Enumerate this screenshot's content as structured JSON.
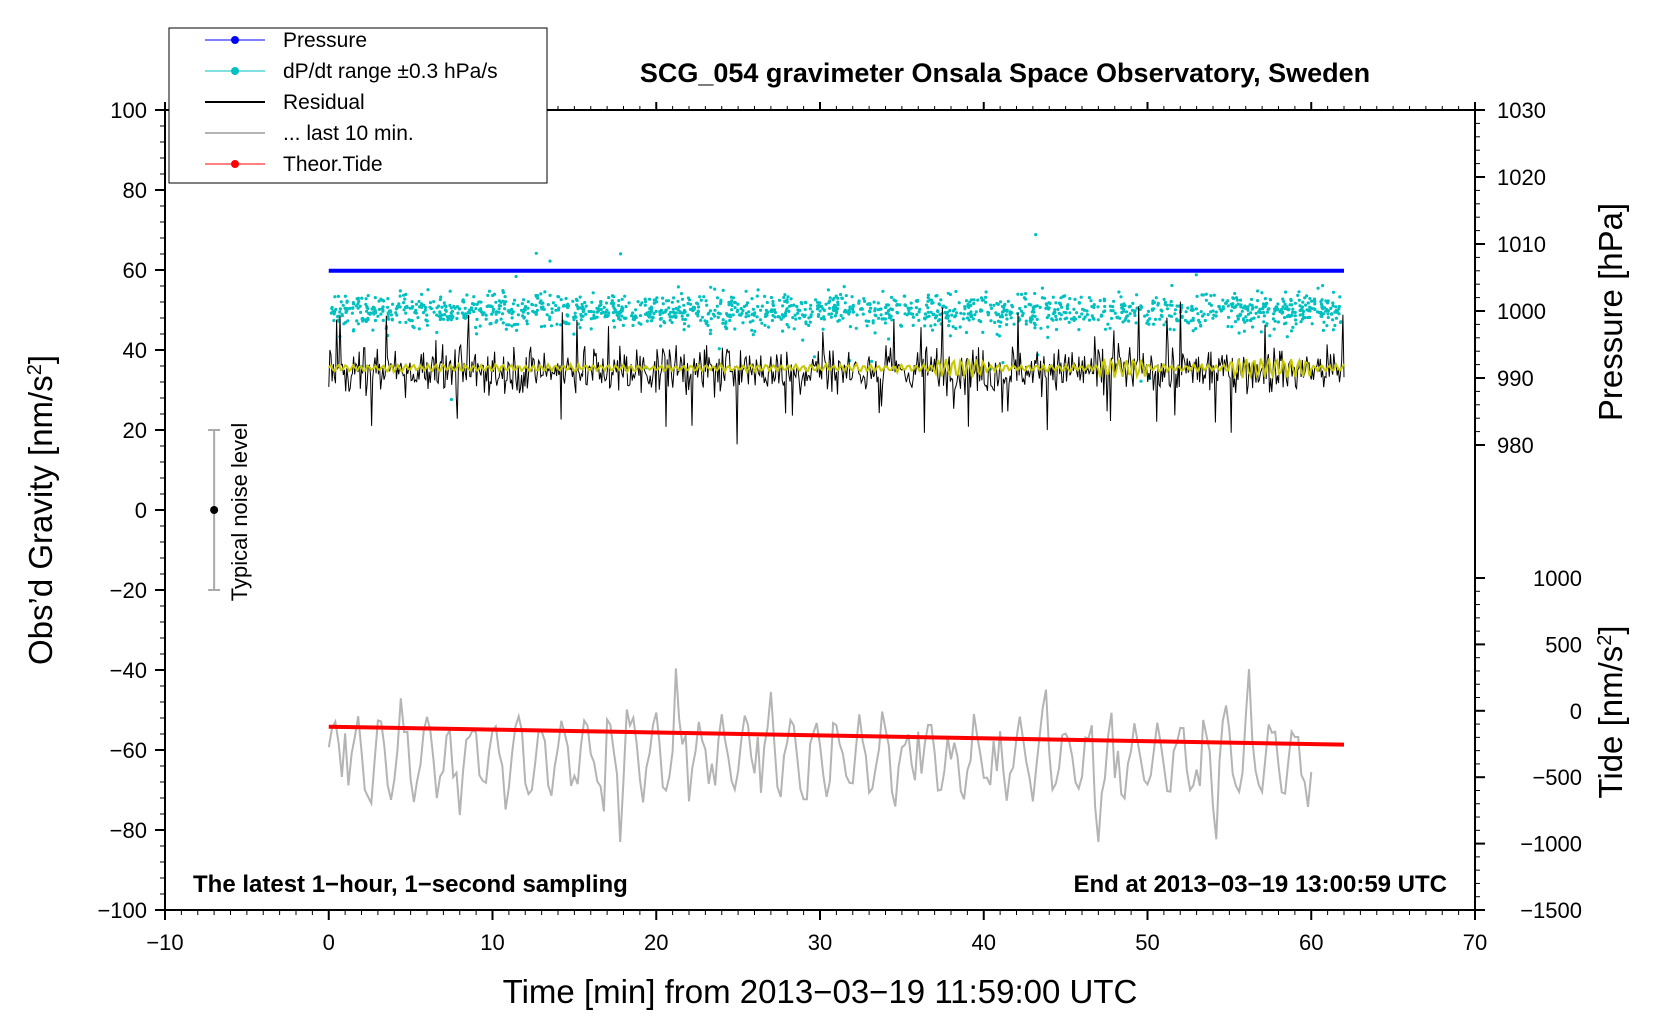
{
  "chart_data": {
    "type": "line",
    "title": "SCG_054 gravimeter Onsala Space Observatory, Sweden",
    "xlabel": "Time [min] from 2013−03−19 11:59:00 UTC",
    "ylabel_left": "Obs’d Gravity [nm/s",
    "ylabel_left_sup": "2",
    "ylabel_left_end": "]",
    "ylabel_right_pressure": "Pressure [hPa]",
    "ylabel_right_tide": "Tide [nm/s",
    "ylabel_right_tide_sup": "2",
    "ylabel_right_tide_end": "]",
    "xlim": [
      -10,
      70
    ],
    "ylim_left": [
      -100,
      100
    ],
    "pressure_axis_range": [
      960,
      1030
    ],
    "tide_axis_range": [
      -1500,
      1000
    ],
    "x_ticks": [
      "−10",
      "0",
      "10",
      "20",
      "30",
      "40",
      "50",
      "60",
      "70"
    ],
    "x_tick_values": [
      -10,
      0,
      10,
      20,
      30,
      40,
      50,
      60,
      70
    ],
    "y_left_ticks": [
      "100",
      "80",
      "60",
      "40",
      "20",
      "0",
      "−20",
      "−40",
      "−60",
      "−80",
      "−100"
    ],
    "y_left_tick_values": [
      100,
      80,
      60,
      40,
      20,
      0,
      -20,
      -40,
      -60,
      -80,
      -100
    ],
    "pressure_ticks": [
      "1030",
      "1020",
      "1010",
      "1000",
      "990",
      "980"
    ],
    "pressure_tick_values": [
      1030,
      1020,
      1010,
      1000,
      990,
      980
    ],
    "tide_ticks": [
      "1000",
      "500",
      "0",
      "−500",
      "−1000",
      "−1500"
    ],
    "tide_tick_values": [
      1000,
      500,
      0,
      -500,
      -1000,
      -1500
    ],
    "legend": [
      {
        "label": "Pressure",
        "color": "#0000ff",
        "style": "line-dot"
      },
      {
        "label": "dP/dt range ±0.3 hPa/s",
        "color": "#00c0c0",
        "style": "dots"
      },
      {
        "label": "Residual",
        "color": "#000000",
        "style": "line"
      },
      {
        "label": "... last 10 min.",
        "color": "#b4b4b4",
        "style": "line"
      },
      {
        "label": "Theor.Tide",
        "color": "#ff0000",
        "style": "line-dot"
      }
    ],
    "series": [
      {
        "name": "Pressure",
        "axis": "pressure",
        "color": "#0000ff",
        "x": [
          0,
          62
        ],
        "values": [
          1006,
          1006
        ]
      },
      {
        "name": "dP/dt range",
        "axis": "pressure",
        "color": "#00c0c0",
        "description": "scatter",
        "x_range": [
          0,
          62
        ],
        "center": 1000,
        "spread": 6
      },
      {
        "name": "Residual",
        "axis": "gravity",
        "color": "#000000",
        "x_range": [
          0,
          62
        ],
        "center": 35,
        "min": 14,
        "max": 59
      },
      {
        "name": "Residual smoothed",
        "axis": "gravity",
        "color": "#c8c800",
        "x_range": [
          0,
          62
        ],
        "center": 35.5
      },
      {
        "name": "... last 10 min.",
        "axis": "gravity",
        "color": "#b4b4b4",
        "x_range": [
          0,
          60
        ],
        "center": -62,
        "min": -83,
        "max": -38
      },
      {
        "name": "Theor.Tide",
        "axis": "tide",
        "color": "#ff0000",
        "x": [
          0,
          62
        ],
        "values": [
          -120,
          -255
        ]
      }
    ],
    "noise_bar": {
      "x": -7,
      "center": 0,
      "low": -20,
      "high": 20,
      "label": "Typical noise level"
    },
    "annotation_left": "The latest 1−hour, 1−second sampling",
    "annotation_right": "End at 2013−03−19 13:00:59 UTC",
    "colors": {
      "pressure": "#0000ff",
      "dpdt": "#00c0c0",
      "residual": "#000000",
      "smoothed": "#c8c800",
      "last10": "#b4b4b4",
      "tide": "#ff0000"
    }
  }
}
